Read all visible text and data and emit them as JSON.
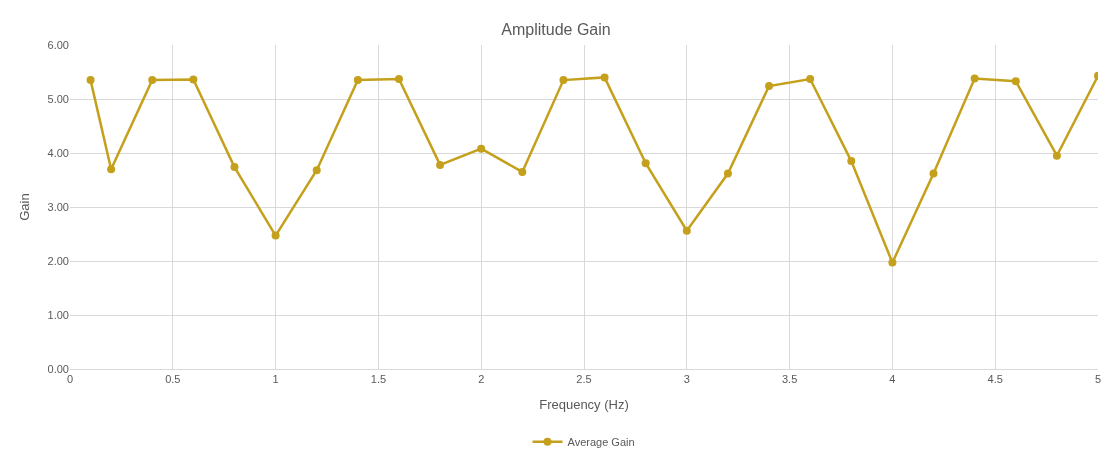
{
  "chart_data": {
    "type": "line",
    "title": "Amplitude Gain",
    "xlabel": "Frequency (Hz)",
    "ylabel": "Gain",
    "x": [
      0.1,
      0.2,
      0.4,
      0.6,
      0.8,
      1.0,
      1.2,
      1.4,
      1.6,
      1.8,
      2.0,
      2.2,
      2.4,
      2.6,
      2.8,
      3.0,
      3.2,
      3.4,
      3.6,
      3.8,
      4.0,
      4.2,
      4.4,
      4.6,
      4.8,
      5.0
    ],
    "series": [
      {
        "name": "Average Gain",
        "color": "#c4a01c",
        "values": [
          5.35,
          3.7,
          5.35,
          5.36,
          3.74,
          2.47,
          3.68,
          5.35,
          5.37,
          3.78,
          4.08,
          3.65,
          5.35,
          5.4,
          3.81,
          2.56,
          3.62,
          5.24,
          5.37,
          3.85,
          1.97,
          3.62,
          5.38,
          5.33,
          3.95,
          5.43
        ]
      }
    ],
    "xlim": [
      0,
      5
    ],
    "xticks": [
      0,
      0.5,
      1,
      1.5,
      2,
      2.5,
      3,
      3.5,
      4,
      4.5,
      5
    ],
    "ylim": [
      0,
      6
    ],
    "yticks": [
      {
        "value": 0,
        "label": "0.00"
      },
      {
        "value": 1,
        "label": "1.00"
      },
      {
        "value": 2,
        "label": "2.00"
      },
      {
        "value": 3,
        "label": "3.00"
      },
      {
        "value": 4,
        "label": "4.00"
      },
      {
        "value": 5,
        "label": "5.00"
      },
      {
        "value": 6,
        "label": "6.00"
      }
    ],
    "grid": true,
    "legend": "bottom",
    "marker": "circle",
    "line_style": "solid"
  }
}
